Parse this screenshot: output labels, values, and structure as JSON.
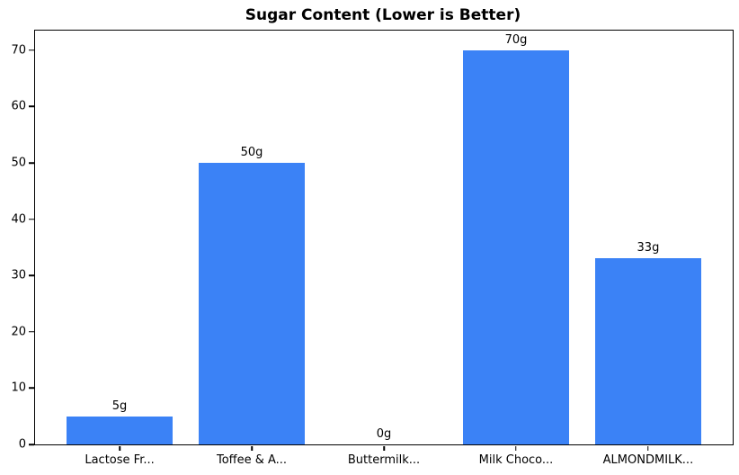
{
  "chart_data": {
    "type": "bar",
    "title": "Sugar Content (Lower is Better)",
    "categories": [
      "Lactose Fr...",
      "Toffee & A...",
      "Buttermilk...",
      "Milk Choco...",
      "ALMONDMILK..."
    ],
    "values": [
      5,
      50,
      0,
      70,
      33
    ],
    "bar_labels": [
      "5g",
      "50g",
      "0g",
      "70g",
      "33g"
    ],
    "xlabel": "",
    "ylabel": "",
    "ylim": [
      0,
      73.5
    ],
    "yticks": [
      0,
      10,
      20,
      30,
      40,
      50,
      60,
      70
    ],
    "bar_color": "#3b82f6",
    "axis_color": "#000000",
    "background_color": "#ffffff",
    "grid": false,
    "legend_position": "none"
  }
}
